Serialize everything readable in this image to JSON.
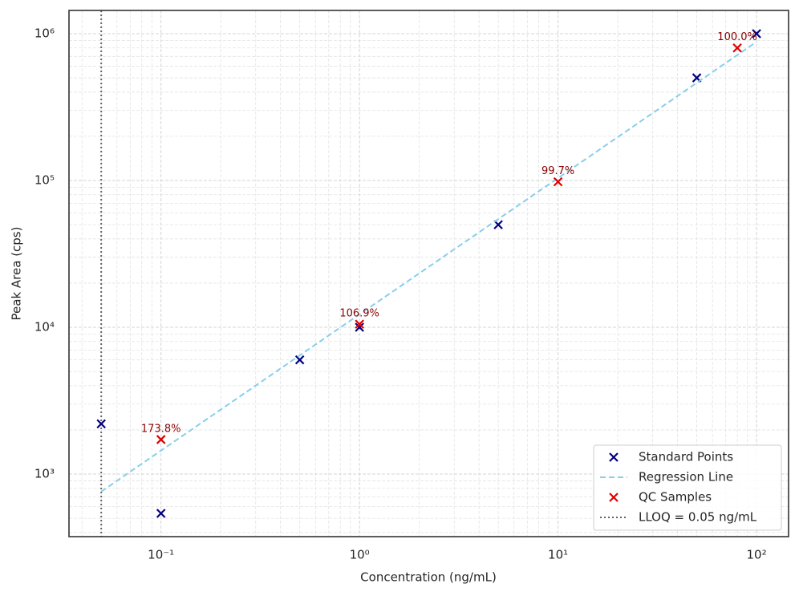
{
  "chart_data": {
    "type": "scatter",
    "xlabel": "Concentration (ng/mL)",
    "ylabel": "Peak Area (cps)",
    "xscale": "log",
    "yscale": "log",
    "xlim": [
      0.0344,
      145
    ],
    "ylim": [
      375,
      1440000
    ],
    "xticks": [
      {
        "value": 0.1,
        "label": "10⁻¹"
      },
      {
        "value": 1,
        "label": "10⁰"
      },
      {
        "value": 10,
        "label": "10¹"
      },
      {
        "value": 100,
        "label": "10²"
      }
    ],
    "yticks": [
      {
        "value": 1000,
        "label": "10³"
      },
      {
        "value": 10000,
        "label": "10⁴"
      },
      {
        "value": 100000,
        "label": "10⁵"
      },
      {
        "value": 1000000,
        "label": "10⁶"
      }
    ],
    "xminorticks": [
      0.04,
      0.05,
      0.06,
      0.07,
      0.08,
      0.09,
      0.2,
      0.3,
      0.4,
      0.5,
      0.6,
      0.7,
      0.8,
      0.9,
      2,
      3,
      4,
      5,
      6,
      7,
      8,
      9,
      20,
      30,
      40,
      50,
      60,
      70,
      80,
      90
    ],
    "yminorticks": [
      400,
      500,
      600,
      700,
      800,
      900,
      2000,
      3000,
      4000,
      5000,
      6000,
      7000,
      8000,
      9000,
      20000,
      30000,
      40000,
      50000,
      60000,
      70000,
      80000,
      90000,
      200000,
      300000,
      400000,
      500000,
      600000,
      700000,
      800000,
      900000
    ],
    "grid": true,
    "legend": "lower right",
    "series": [
      {
        "name": "Standard Points",
        "color": "#000080",
        "marker": "x",
        "x": [
          0.05,
          0.1,
          0.5,
          1,
          5,
          50,
          100
        ],
        "values": [
          2200,
          540,
          6000,
          10000,
          50000,
          500000,
          1000000
        ]
      },
      {
        "name": "Regression Line",
        "color": "#87ceeb",
        "linestyle": "dashed",
        "x": [
          0.05,
          100
        ],
        "values": [
          760,
          880000
        ]
      },
      {
        "name": "QC Samples",
        "color": "#e00000",
        "marker": "x",
        "x": [
          0.1,
          1,
          10,
          80
        ],
        "values": [
          1720,
          10500,
          98000,
          800000
        ]
      }
    ],
    "annotations": [
      "173.8%",
      "106.9%",
      "99.7%",
      "100.0%"
    ],
    "annotation_color": "#8b0000",
    "vlines": [
      {
        "x": 0.05,
        "name": "LLOQ = 0.05 ng/mL",
        "color": "#666666",
        "linestyle": "dotted"
      }
    ]
  }
}
